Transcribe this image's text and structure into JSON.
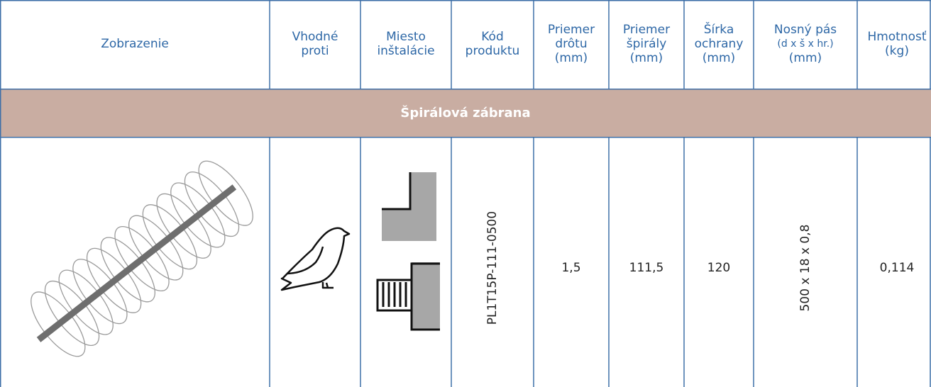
{
  "table": {
    "header": [
      [
        "Zobrazenie"
      ],
      [
        "Vhodné",
        "proti"
      ],
      [
        "Miesto",
        "inštalácie"
      ],
      [
        "Kód",
        "produktu"
      ],
      [
        "Priemer",
        "drôtu",
        "(mm)"
      ],
      [
        "Priemer",
        "špirály",
        "(mm)"
      ],
      [
        "Šírka",
        "ochrany",
        "(mm)"
      ],
      [
        "Nosný pás",
        "(d x š x hr.)",
        "(mm)"
      ],
      [
        "Hmotnosť",
        "(kg)"
      ]
    ],
    "section": "Špirálová zábrana",
    "rows": [
      [
        "PL1T15P-111-0500",
        "1,5",
        "111,5",
        "120",
        "500 x 18 x 0,8",
        "0,114"
      ]
    ]
  }
}
